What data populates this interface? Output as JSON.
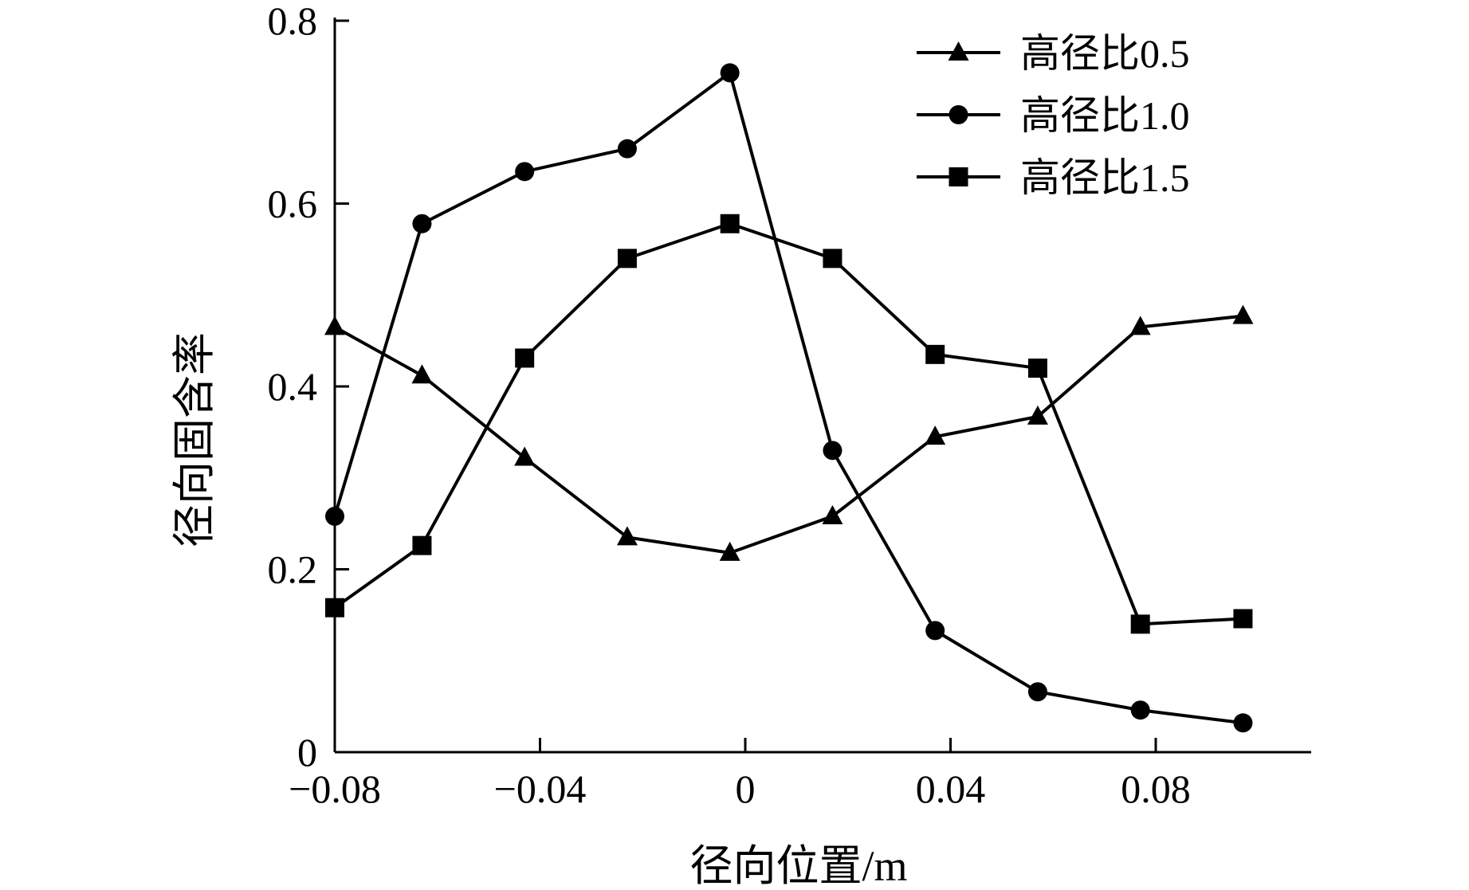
{
  "chart_data": {
    "type": "line",
    "xlabel": "径向位置/m",
    "ylabel": "径向固含率",
    "x_ticks": [
      "−0.08",
      "−0.04",
      "0",
      "0.04",
      "0.08"
    ],
    "y_ticks": [
      "0",
      "0.2",
      "0.4",
      "0.6",
      "0.8"
    ],
    "x_tick_values": [
      -0.08,
      -0.04,
      0,
      0.04,
      0.08
    ],
    "y_tick_values": [
      0,
      0.2,
      0.4,
      0.6,
      0.8
    ],
    "xlim": [
      -0.08,
      0.1
    ],
    "ylim": [
      0,
      0.8
    ],
    "grid": false,
    "legend_position": "top-right",
    "series": [
      {
        "name": "高径比0.5",
        "marker": "triangle",
        "x": [
          -0.08,
          -0.063,
          -0.043,
          -0.023,
          -0.003,
          0.017,
          0.037,
          0.057,
          0.077,
          0.097
        ],
        "y": [
          0.465,
          0.412,
          0.322,
          0.235,
          0.218,
          0.258,
          0.345,
          0.367,
          0.465,
          0.477
        ]
      },
      {
        "name": "高径比1.0",
        "marker": "circle",
        "x": [
          -0.08,
          -0.063,
          -0.043,
          -0.023,
          -0.003,
          0.017,
          0.037,
          0.057,
          0.077,
          0.097
        ],
        "y": [
          0.258,
          0.578,
          0.635,
          0.66,
          0.743,
          0.33,
          0.133,
          0.066,
          0.046,
          0.032
        ]
      },
      {
        "name": "高径比1.5",
        "marker": "square",
        "x": [
          -0.08,
          -0.063,
          -0.043,
          -0.023,
          -0.003,
          0.017,
          0.037,
          0.057,
          0.077,
          0.097
        ],
        "y": [
          0.158,
          0.226,
          0.431,
          0.54,
          0.578,
          0.54,
          0.435,
          0.42,
          0.14,
          0.146
        ]
      }
    ]
  }
}
